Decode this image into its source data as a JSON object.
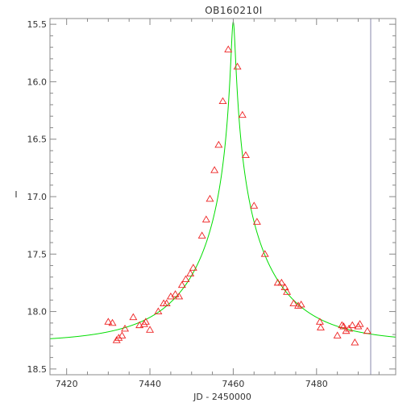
{
  "chart_data": {
    "type": "scatter",
    "title": "OB160210I",
    "xlabel": "JD - 2450000",
    "ylabel": "I",
    "xlim": [
      7416,
      7499
    ],
    "ylim": [
      18.55,
      15.45
    ],
    "y_inverted": true,
    "xticks": [
      7420,
      7440,
      7460,
      7480
    ],
    "yticks": [
      15.5,
      16.0,
      16.5,
      17.0,
      17.5,
      18.0,
      18.5
    ],
    "xtick_labels": [
      "7420",
      "7440",
      "7460",
      "7480"
    ],
    "ytick_labels": [
      "15.5",
      "16.0",
      "16.5",
      "17.0",
      "17.5",
      "18.0",
      "18.5"
    ],
    "grid": false,
    "colors": {
      "data": "#ee2222",
      "model": "#00dd00",
      "vertical_line": "#8888aa",
      "axes": "#888888"
    },
    "vertical_line_x": 7493,
    "model": {
      "description": "microlensing fit",
      "t0": 7460.0,
      "u0": 0.024,
      "tE": 20.0,
      "baseline_mag": 18.27,
      "peak_mag": 15.48
    },
    "series": [
      {
        "marker": "triangle",
        "x": [
          7430.0,
          7431.0,
          7432.0,
          7432.5,
          7433.3,
          7434.0,
          7436.0,
          7437.5,
          7438.6,
          7439.0,
          7440.0,
          7442.0,
          7443.3,
          7444.0,
          7445.0,
          7446.1,
          7447.0,
          7447.7,
          7448.6,
          7449.7,
          7450.4,
          7452.5,
          7453.5,
          7454.4,
          7455.5,
          7456.5,
          7457.5,
          7458.8,
          7461.0,
          7462.2,
          7463.0,
          7465.0,
          7465.7,
          7467.6,
          7470.7,
          7471.6,
          7472.4,
          7472.9,
          7474.5,
          7475.6,
          7476.3,
          7480.8,
          7481.0,
          7485.0,
          7486.1,
          7486.5,
          7487.1,
          7487.8,
          7488.6,
          7489.2,
          7490.0,
          7490.4,
          7492.2
        ],
        "y": [
          18.09,
          18.1,
          18.25,
          18.23,
          18.21,
          18.15,
          18.05,
          18.12,
          18.11,
          18.09,
          18.16,
          18.0,
          17.93,
          17.93,
          17.87,
          17.85,
          17.87,
          17.77,
          17.72,
          17.67,
          17.62,
          17.34,
          17.2,
          17.02,
          16.77,
          16.55,
          16.17,
          15.72,
          15.87,
          16.29,
          16.64,
          17.08,
          17.22,
          17.5,
          17.75,
          17.75,
          17.79,
          17.83,
          17.93,
          17.95,
          17.94,
          18.09,
          18.14,
          18.21,
          18.12,
          18.13,
          18.17,
          18.15,
          18.12,
          18.27,
          18.13,
          18.11,
          18.17
        ]
      }
    ]
  }
}
